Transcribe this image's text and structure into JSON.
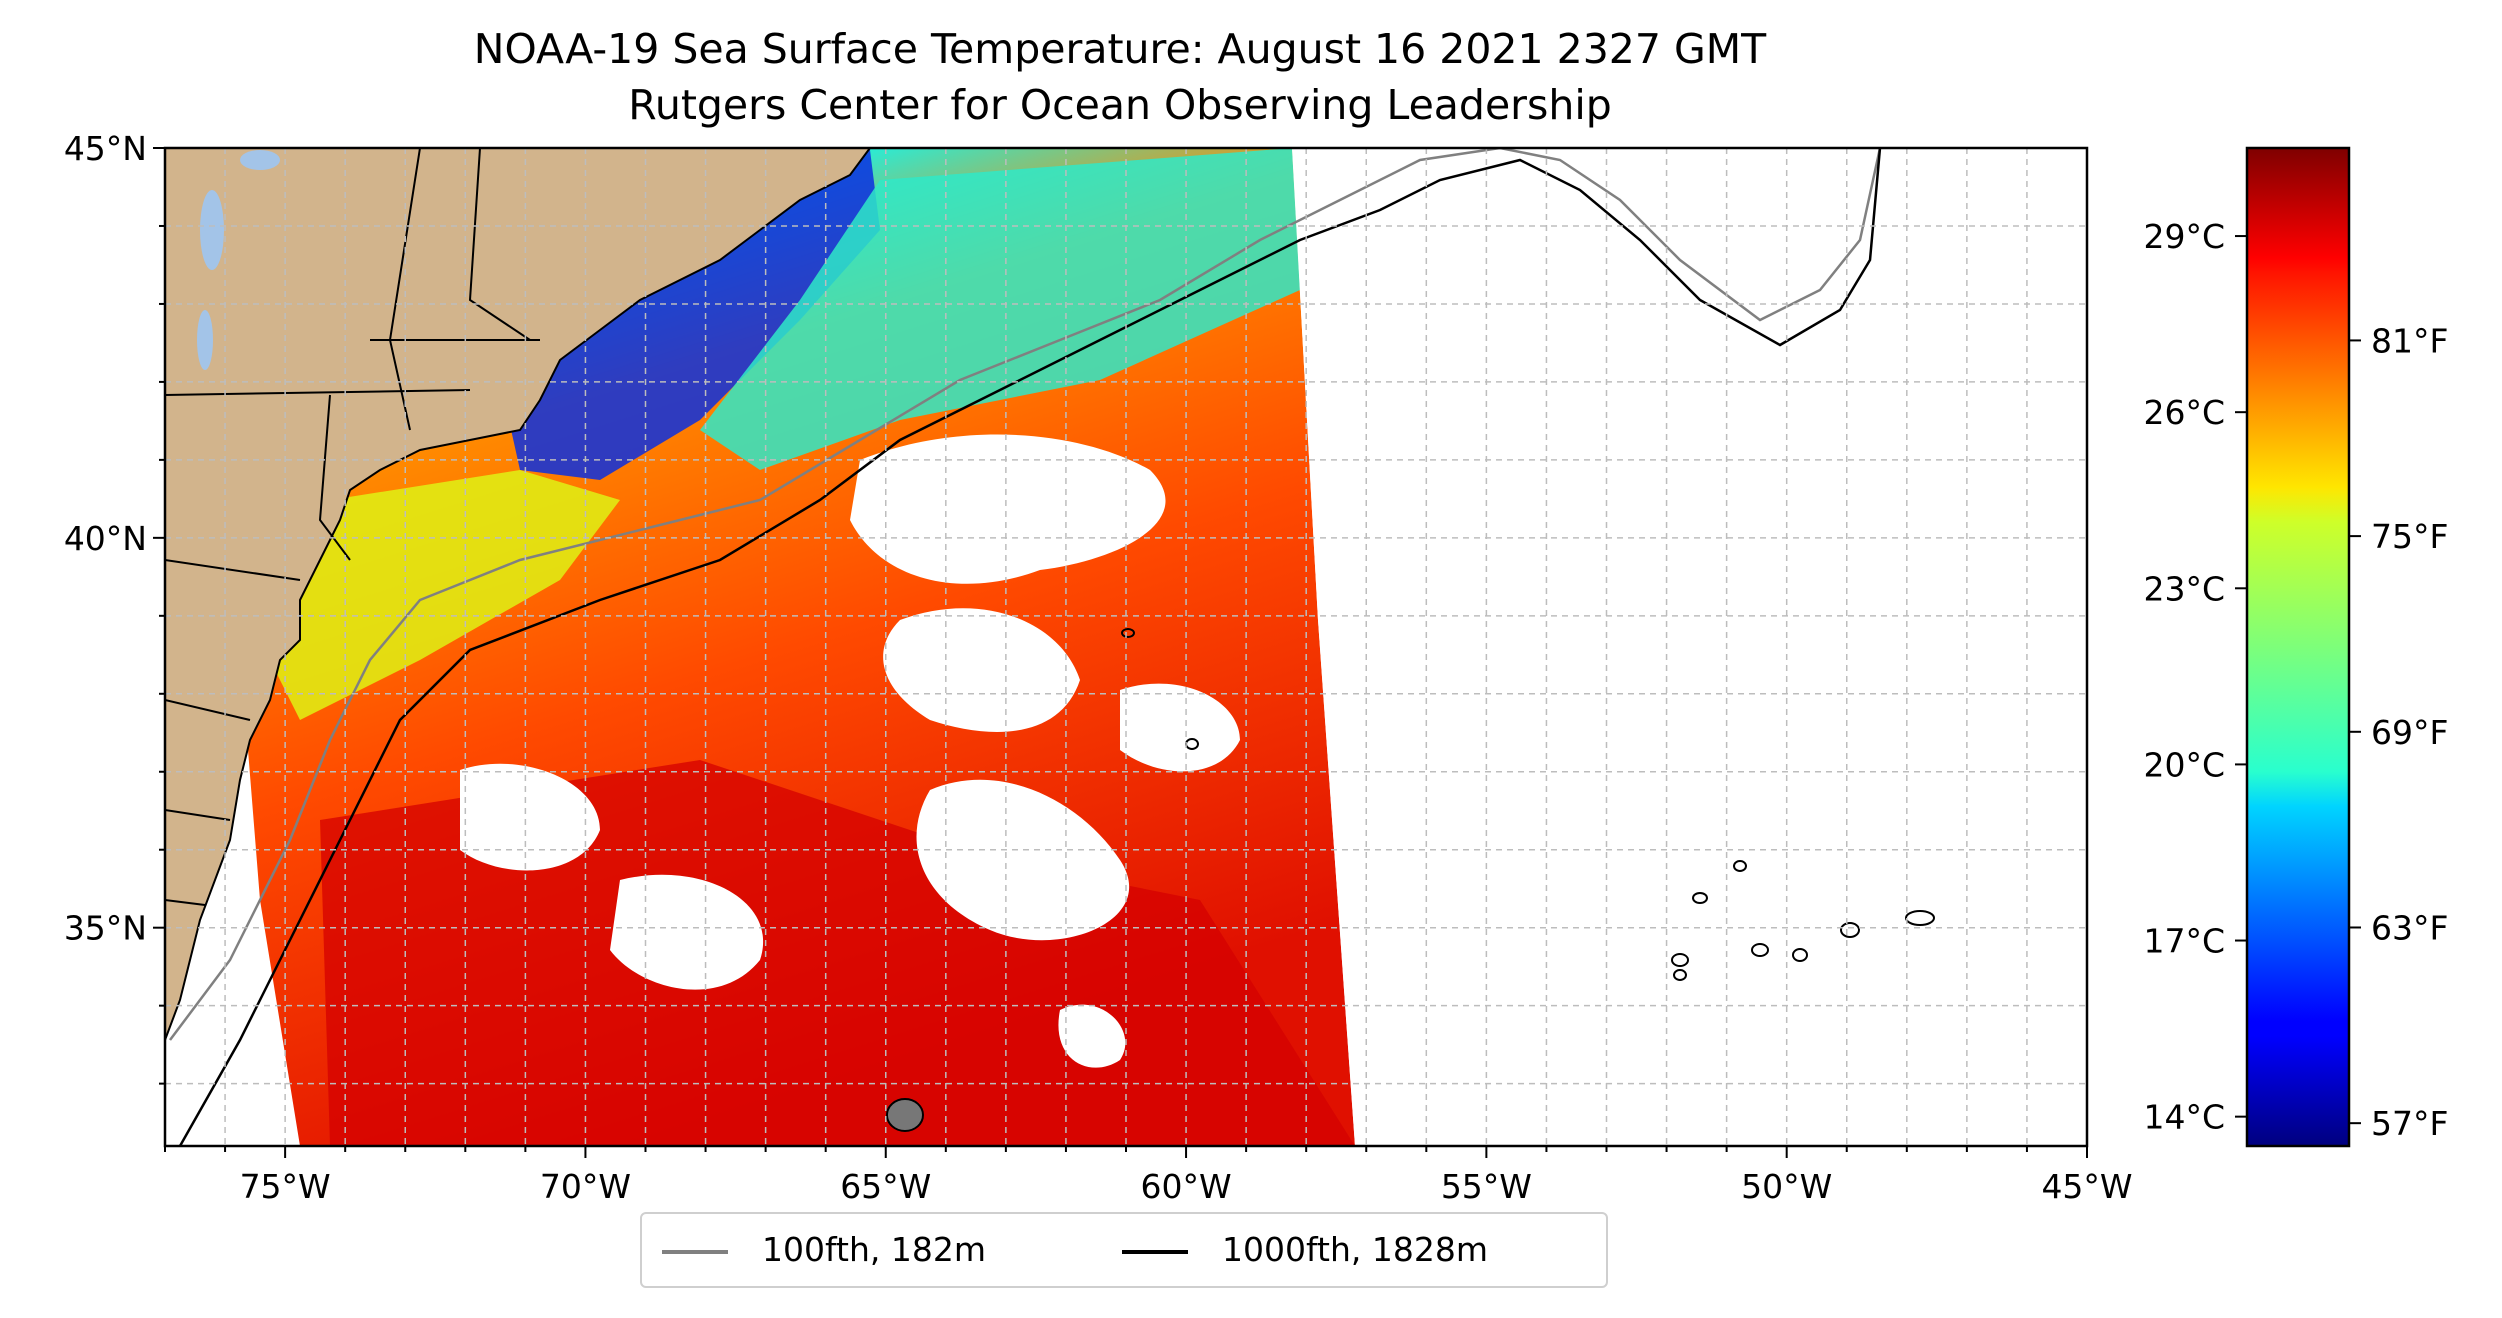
{
  "title": {
    "line1": "NOAA-19 Sea Surface Temperature: August 16 2021 2327 GMT",
    "line2": "Rutgers Center for Ocean Observing Leadership"
  },
  "map": {
    "lon_range": [
      -77,
      -45
    ],
    "lat_range": [
      32.2,
      45
    ],
    "x_ticks": [
      "75°W",
      "70°W",
      "65°W",
      "60°W",
      "55°W",
      "50°W",
      "45°W"
    ],
    "x_tick_values": [
      -75,
      -70,
      -65,
      -60,
      -55,
      -50,
      -45
    ],
    "y_ticks": [
      "45°N",
      "40°N",
      "35°N"
    ],
    "y_tick_values": [
      45,
      40,
      35
    ],
    "gridlines": true,
    "land_color": "#d2b48c",
    "lake_color": "#a3c4e8"
  },
  "legend": {
    "placement": "bottom-center below map",
    "items": [
      {
        "label": "100fth, 182m",
        "color": "#808080"
      },
      {
        "label": "1000fth, 1828m",
        "color": "#000000"
      }
    ]
  },
  "colorbar": {
    "colormap": "jet",
    "celsius_ticks": [
      "29°C",
      "26°C",
      "23°C",
      "20°C",
      "17°C",
      "14°C"
    ],
    "celsius_values": [
      29,
      26,
      23,
      20,
      17,
      14
    ],
    "fahrenheit_ticks": [
      "81°F",
      "75°F",
      "69°F",
      "63°F",
      "57°F"
    ],
    "fahrenheit_values": [
      81,
      75,
      69,
      63,
      57
    ],
    "range_c": [
      13.5,
      30.5
    ]
  }
}
